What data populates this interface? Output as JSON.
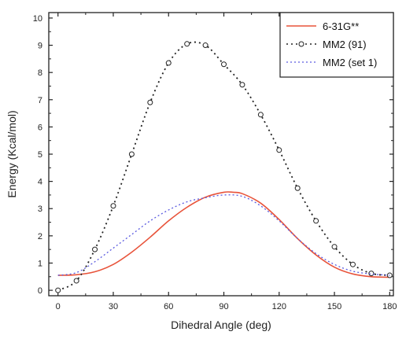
{
  "chart_data": {
    "type": "line",
    "xlabel": "Dihedral Angle (deg)",
    "ylabel": "Energy (Kcal/mol)",
    "xlim": [
      -5,
      182
    ],
    "ylim": [
      -0.2,
      10.2
    ],
    "xticks": [
      0,
      30,
      60,
      90,
      120,
      150,
      180
    ],
    "yticks": [
      0,
      1,
      2,
      3,
      4,
      5,
      6,
      7,
      8,
      9,
      10
    ],
    "grid": false,
    "legend_position": "top-right",
    "series": [
      {
        "name": "6-31G**",
        "color": "#e8533a",
        "style": "solid",
        "x": [
          0,
          10,
          20,
          30,
          40,
          50,
          60,
          70,
          80,
          90,
          95,
          100,
          110,
          120,
          130,
          140,
          150,
          160,
          170,
          180
        ],
        "y": [
          0.55,
          0.57,
          0.68,
          0.95,
          1.4,
          1.95,
          2.55,
          3.05,
          3.42,
          3.6,
          3.6,
          3.55,
          3.2,
          2.6,
          1.9,
          1.3,
          0.85,
          0.6,
          0.5,
          0.48
        ]
      },
      {
        "name": "MM2 (91)",
        "color": "#222222",
        "style": "dotted-circle",
        "x": [
          0,
          10,
          20,
          30,
          40,
          50,
          60,
          70,
          80,
          90,
          100,
          110,
          120,
          130,
          140,
          150,
          160,
          170,
          180
        ],
        "y": [
          0.0,
          0.35,
          1.5,
          3.1,
          5.0,
          6.9,
          8.35,
          9.05,
          9.0,
          8.3,
          7.55,
          6.45,
          5.15,
          3.75,
          2.55,
          1.6,
          0.95,
          0.62,
          0.55
        ]
      },
      {
        "name": "MM2 (set 1)",
        "color": "#5a5ae0",
        "style": "dashed",
        "x": [
          0,
          10,
          20,
          30,
          40,
          50,
          60,
          70,
          80,
          90,
          100,
          110,
          120,
          130,
          140,
          150,
          160,
          170,
          180
        ],
        "y": [
          0.55,
          0.65,
          1.05,
          1.55,
          2.05,
          2.55,
          2.95,
          3.25,
          3.4,
          3.5,
          3.45,
          3.1,
          2.55,
          1.9,
          1.35,
          0.95,
          0.7,
          0.6,
          0.55
        ]
      }
    ]
  }
}
